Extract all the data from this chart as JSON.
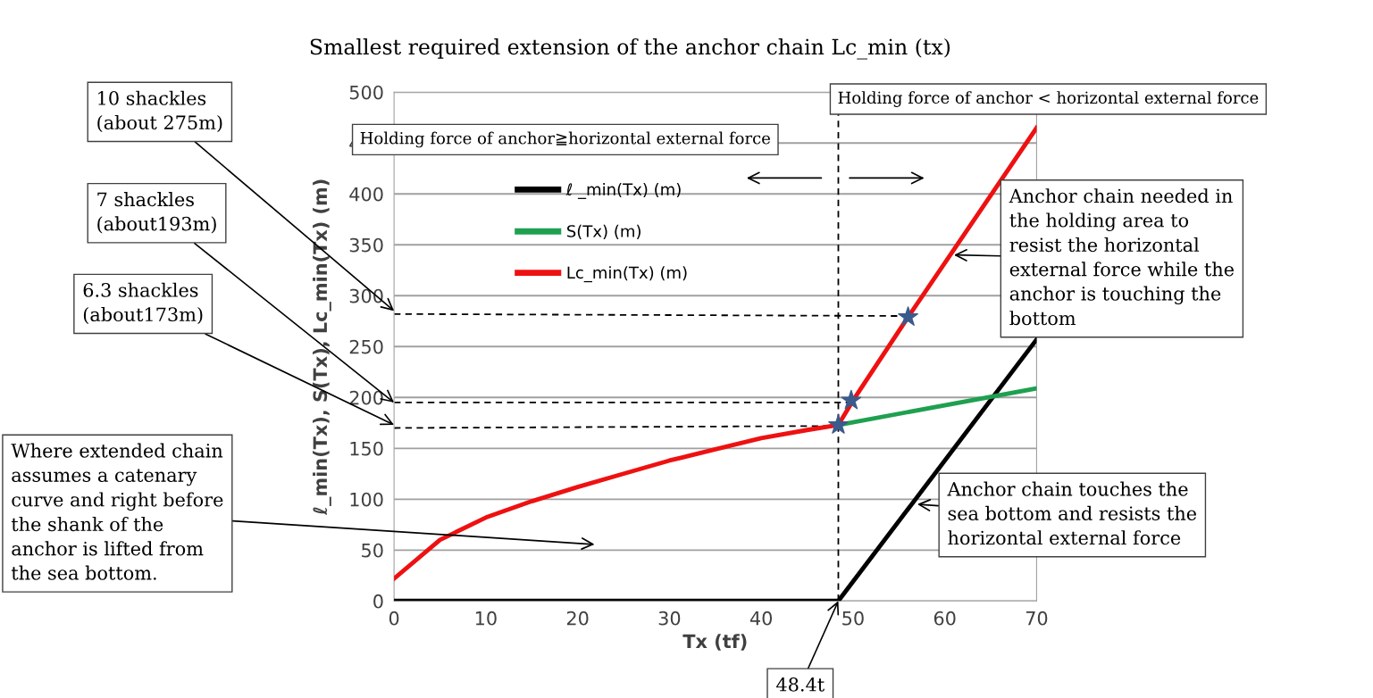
{
  "chart_data": {
    "type": "line",
    "title": "Smallest required extension of the anchor chain Lc_min (tx)",
    "xlabel": "Tx (tf)",
    "ylabel": "ℓ_min(Tx), S(Tx), Lc_min(Tx) (m)",
    "xlim": [
      0,
      70
    ],
    "xticks": [
      0,
      10,
      20,
      30,
      40,
      50,
      60,
      70
    ],
    "ylim": [
      0,
      500
    ],
    "yticks": [
      0,
      50,
      100,
      150,
      200,
      250,
      300,
      350,
      400,
      450,
      500
    ],
    "grid": "y",
    "legend": "top left",
    "marker": "none",
    "line_style": "solid",
    "series": [
      {
        "name": "ℓ _min(Tx) (m)",
        "color": "#000000",
        "x": [
          0,
          48.4,
          70
        ],
        "values": [
          0,
          0,
          257
        ]
      },
      {
        "name": "S(Tx) (m)",
        "color": "#1fa050",
        "x": [
          48.4,
          70
        ],
        "values": [
          173,
          209
        ]
      },
      {
        "name": "Lc_min(Tx) (m)",
        "color": "#ee1111",
        "x": [
          0,
          5,
          10,
          15,
          20,
          25,
          30,
          35,
          40,
          45,
          48.4,
          50,
          56,
          70
        ],
        "values": [
          22,
          60,
          82,
          98,
          112,
          125,
          138,
          149,
          160,
          168,
          173,
          197,
          279,
          465
        ]
      },
      {
        "type": "line",
        "color": "#000000",
        "line_style": "dashed",
        "x": [
          0,
          56
        ],
        "values": [
          282,
          280
        ]
      },
      {
        "type": "line",
        "color": "#000000",
        "line_style": "dashed",
        "x": [
          0,
          49.8
        ],
        "values": [
          195,
          195
        ]
      },
      {
        "type": "line",
        "color": "#000000",
        "line_style": "dashed",
        "x": [
          0,
          48.4
        ],
        "values": [
          170,
          172
        ]
      },
      {
        "type": "scatter",
        "color": "#3b5b8c",
        "marker": "star",
        "x": [
          48.4,
          49.8,
          56
        ],
        "values": [
          173,
          197,
          279
        ]
      }
    ],
    "ref_lines": [
      {
        "axis": "x",
        "value": 48.4,
        "color": "#000000",
        "line_style": "dashed"
      }
    ],
    "annotations": [
      {
        "text": "10 shackles\n(about 275m)",
        "x": 0,
        "y": 285
      },
      {
        "text": "7 shackles\n(about193m)",
        "x": 0,
        "y": 195
      },
      {
        "text": "6.3 shackles\n(about173m)",
        "x": 0,
        "y": 173
      },
      "Where extended chain\nassumes a catenary\ncurve and right before\nthe shank of the\nanchor is lifted from\nthe sea bottom.",
      {
        "text": "48.4t",
        "x": 48.4,
        "y": 0
      },
      {
        "text": "Anchor chain needed in\nthe holding area to\nresist the horizontal\nexternal force while the\nanchor is touching the\nbottom",
        "x": 61,
        "y": 340
      },
      {
        "text": "Anchor chain touches the\nsea bottom and resists the\nhorizontal external force",
        "x": 57,
        "y": 95
      },
      "Holding force of anchor≧horizontal external force",
      "Holding force of anchor < horizontal external force"
    ]
  }
}
